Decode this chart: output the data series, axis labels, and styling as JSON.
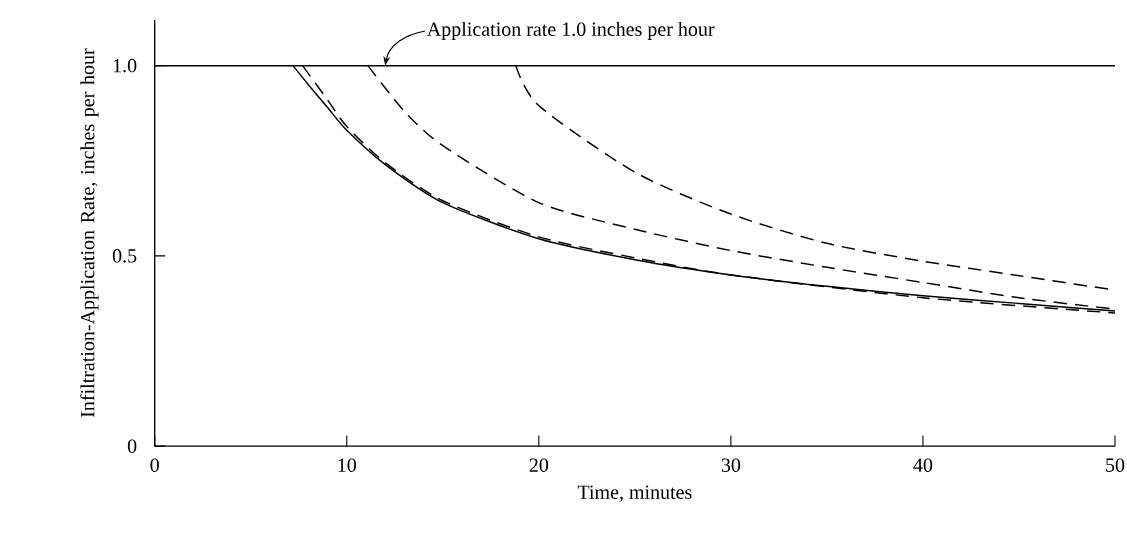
{
  "chart_data": {
    "type": "line",
    "xlabel": "Time, minutes",
    "ylabel": "Infiltration-Application Rate, inches per hour",
    "xlim": [
      0,
      50
    ],
    "ylim": [
      0,
      1.12
    ],
    "xticks": [
      0,
      10,
      20,
      30,
      40,
      50
    ],
    "yticks": [
      0,
      {
        "value": 0.5,
        "label": "0.5"
      },
      {
        "value": 1.0,
        "label": "1.0"
      }
    ],
    "marker": "none",
    "annotations": [
      {
        "text": "Application rate    1.0 inches per hour",
        "x": 12,
        "y": 1.0
      }
    ],
    "series": [
      {
        "color": "#000000",
        "line_style": "solid",
        "x": [
          0,
          50
        ],
        "values": [
          1.0,
          1.0
        ]
      },
      {
        "color": "#000000",
        "line_style": "solid",
        "x": [
          7.2,
          8,
          9,
          10,
          12,
          15,
          20,
          25,
          30,
          35,
          40,
          45,
          50
        ],
        "values": [
          1.0,
          0.95,
          0.89,
          0.83,
          0.74,
          0.64,
          0.545,
          0.49,
          0.45,
          0.42,
          0.395,
          0.375,
          0.355
        ]
      },
      {
        "color": "#000000",
        "line_style": "dashed",
        "x": [
          7.7,
          9,
          10,
          12,
          15,
          20,
          25,
          30,
          40,
          50
        ],
        "values": [
          1.0,
          0.91,
          0.84,
          0.745,
          0.645,
          0.55,
          0.495,
          0.45,
          0.39,
          0.35
        ]
      },
      {
        "color": "#000000",
        "line_style": "dashed",
        "x": [
          11.1,
          13,
          15,
          20,
          25,
          30,
          35,
          40,
          45,
          50
        ],
        "values": [
          1.0,
          0.88,
          0.79,
          0.64,
          0.57,
          0.514,
          0.47,
          0.43,
          0.39,
          0.36
        ]
      },
      {
        "color": "#000000",
        "line_style": "dashed",
        "x": [
          18.8,
          20,
          25,
          30,
          35,
          40,
          45,
          50
        ],
        "values": [
          1.0,
          0.895,
          0.72,
          0.61,
          0.533,
          0.486,
          0.448,
          0.41
        ]
      }
    ]
  }
}
